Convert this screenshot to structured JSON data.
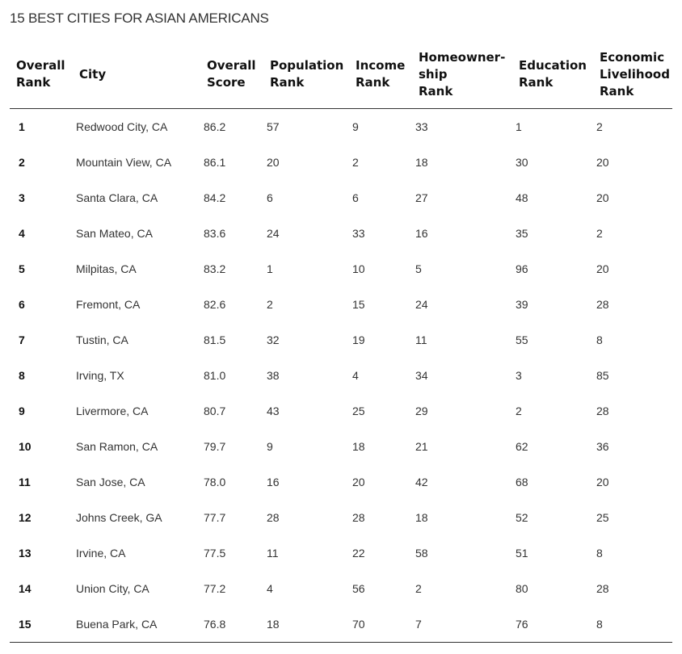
{
  "title": "15 Best Cities for Asian Americans",
  "headers": [
    "Overall\nRank",
    "City",
    "Overall\nScore",
    "Population\nRank",
    "Income\nRank",
    "Homeowner-\nship\nRank",
    "Education\nRank",
    "Economic\nLivelihood\nRank"
  ],
  "rows": [
    [
      "1",
      "Redwood City, CA",
      "86.2",
      "57",
      "9",
      "33",
      "1",
      "2"
    ],
    [
      "2",
      "Mountain View, CA",
      "86.1",
      "20",
      "2",
      "18",
      "30",
      "20"
    ],
    [
      "3",
      "Santa Clara, CA",
      "84.2",
      "6",
      "6",
      "27",
      "48",
      "20"
    ],
    [
      "4",
      "San Mateo, CA",
      "83.6",
      "24",
      "33",
      "16",
      "35",
      "2"
    ],
    [
      "5",
      "Milpitas, CA",
      "83.2",
      "1",
      "10",
      "5",
      "96",
      "20"
    ],
    [
      "6",
      "Fremont, CA",
      "82.6",
      "2",
      "15",
      "24",
      "39",
      "28"
    ],
    [
      "7",
      "Tustin, CA",
      "81.5",
      "32",
      "19",
      "11",
      "55",
      "8"
    ],
    [
      "8",
      "Irving, TX",
      "81.0",
      "38",
      "4",
      "34",
      "3",
      "85"
    ],
    [
      "9",
      "Livermore, CA",
      "80.7",
      "43",
      "25",
      "29",
      "2",
      "28"
    ],
    [
      "10",
      "San Ramon, CA",
      "79.7",
      "9",
      "18",
      "21",
      "62",
      "36"
    ],
    [
      "11",
      "San Jose, CA",
      "78.0",
      "16",
      "20",
      "42",
      "68",
      "20"
    ],
    [
      "12",
      "Johns Creek, GA",
      "77.7",
      "28",
      "28",
      "18",
      "52",
      "25"
    ],
    [
      "13",
      "Irvine, CA",
      "77.5",
      "11",
      "22",
      "58",
      "51",
      "8"
    ],
    [
      "14",
      "Union City, CA",
      "77.2",
      "4",
      "56",
      "2",
      "80",
      "28"
    ],
    [
      "15",
      "Buena Park, CA",
      "76.8",
      "18",
      "70",
      "7",
      "76",
      "8"
    ]
  ]
}
